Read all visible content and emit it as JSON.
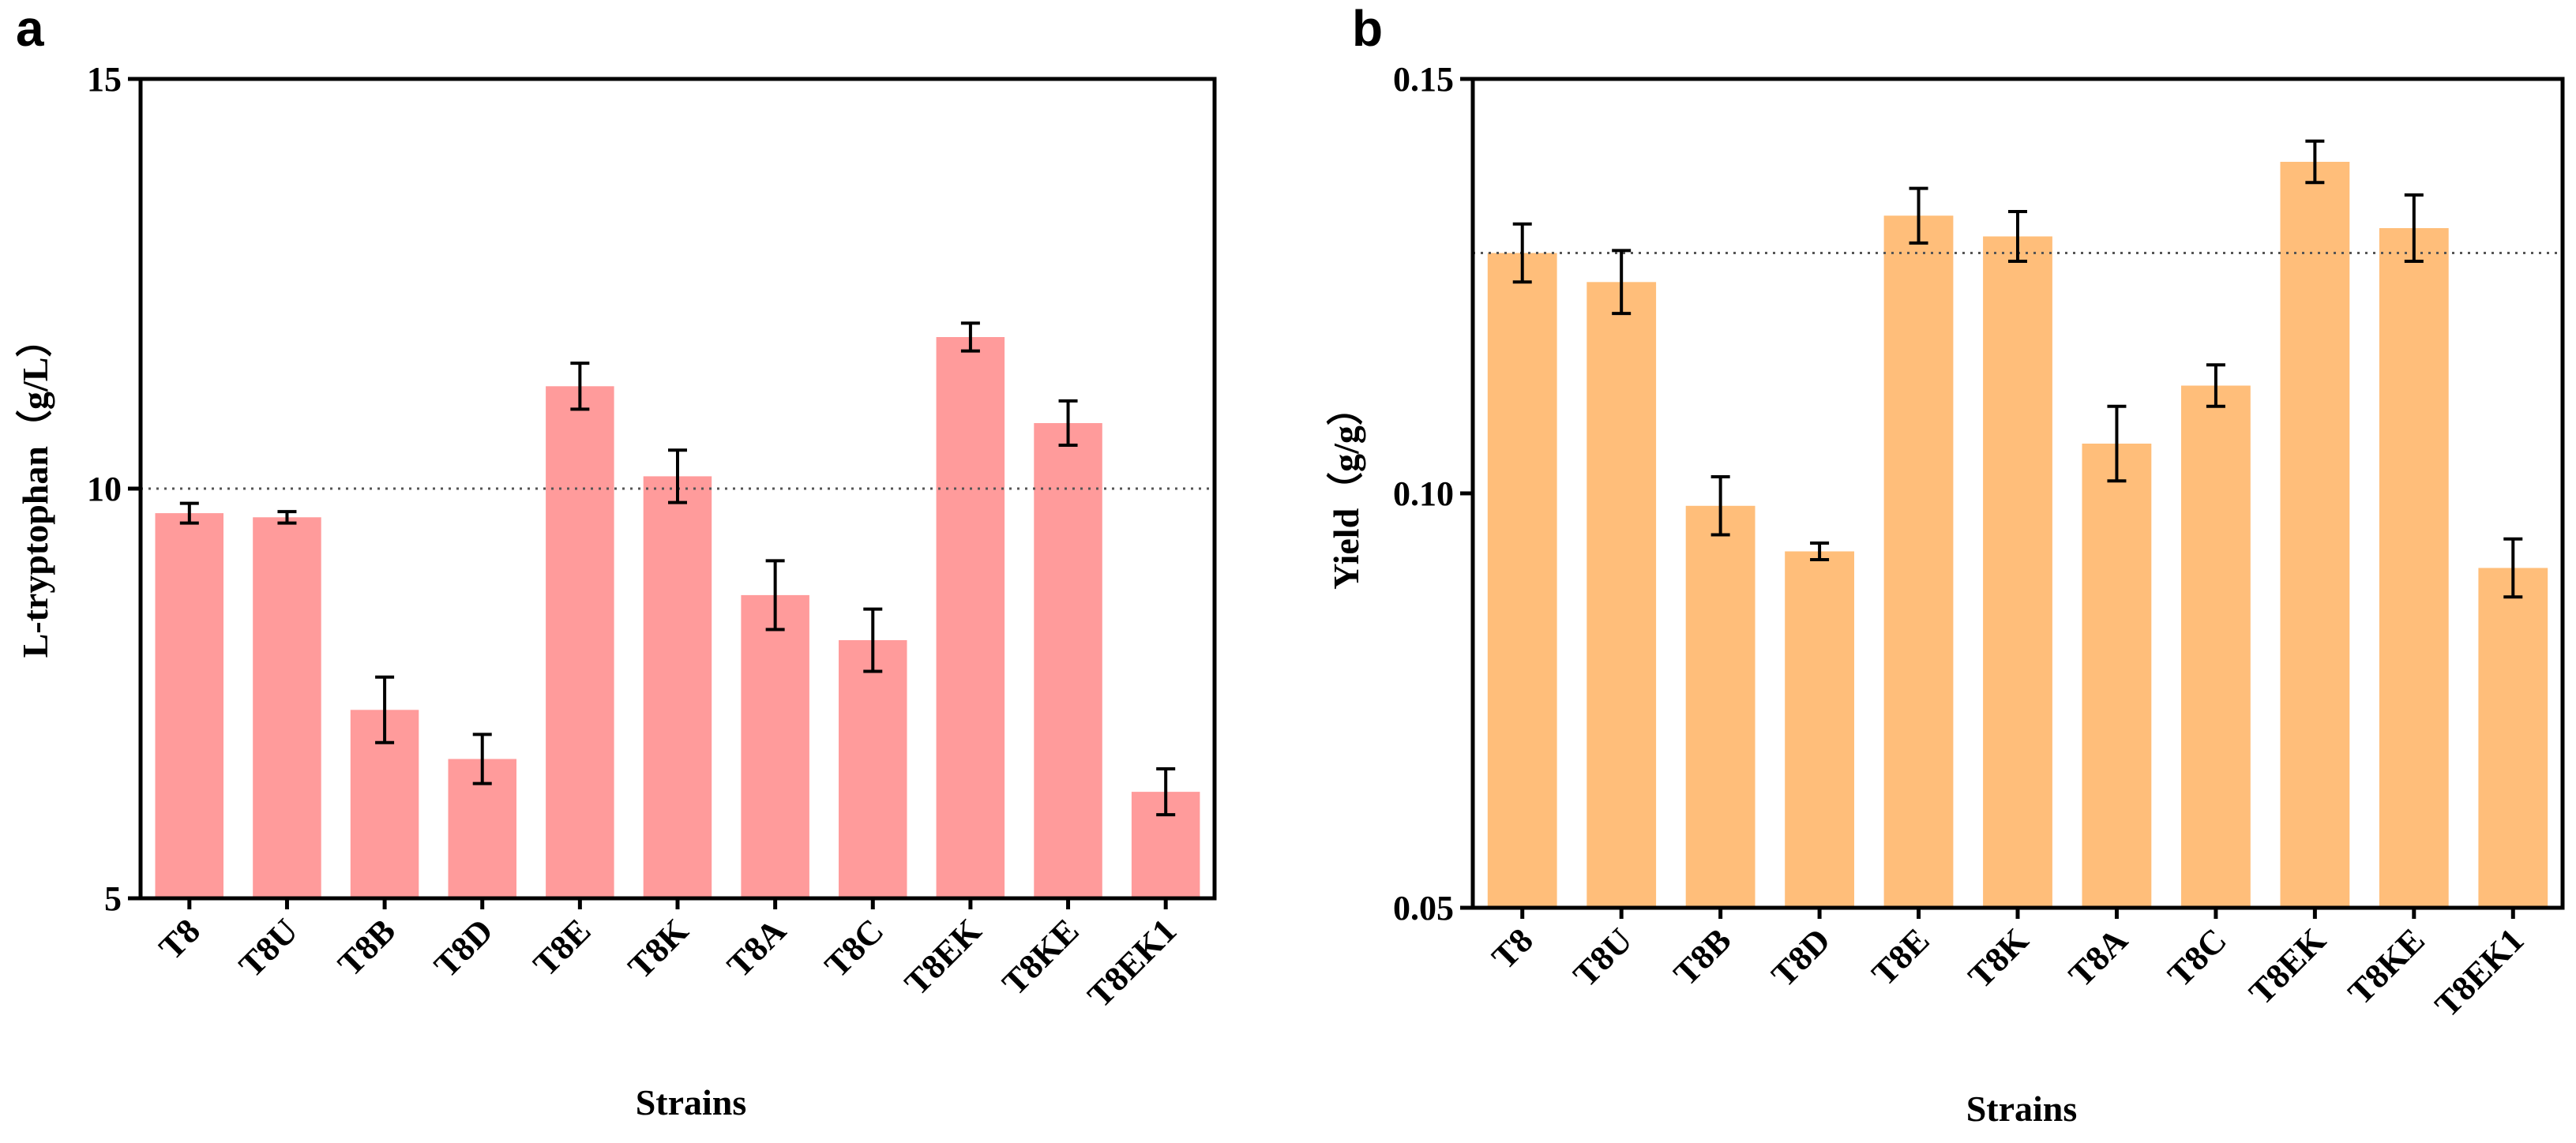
{
  "colors": {
    "panel_a_bar": "#ff9b9b",
    "panel_b_bar": "#ffbe7a",
    "axis": "#000000",
    "reference_line": "#555555"
  },
  "chart_data": [
    {
      "type": "bar",
      "panel_label": "a",
      "title": "",
      "xlabel": "Strains",
      "ylabel": "L-tryptophan（g/L）",
      "ylim": [
        5,
        15
      ],
      "yticks": [
        5,
        10,
        15
      ],
      "ytick_labels": [
        "5",
        "10",
        "15"
      ],
      "reference_line": 10,
      "categories": [
        "T8",
        "T8U",
        "T8B",
        "T8D",
        "T8E",
        "T8K",
        "T8A",
        "T8C",
        "T8EK",
        "T8KE",
        "T8EK1"
      ],
      "values": [
        9.7,
        9.65,
        7.3,
        6.7,
        11.25,
        10.15,
        8.7,
        8.15,
        11.85,
        10.8,
        6.3
      ],
      "errors": [
        0.12,
        0.07,
        0.4,
        0.3,
        0.28,
        0.32,
        0.42,
        0.38,
        0.17,
        0.27,
        0.28
      ]
    },
    {
      "type": "bar",
      "panel_label": "b",
      "title": "",
      "xlabel": "Strains",
      "ylabel": "Yield（g/g）",
      "ylim": [
        0.05,
        0.15
      ],
      "yticks": [
        0.05,
        0.1,
        0.15
      ],
      "ytick_labels": [
        "0.05",
        "0.10",
        "0.15"
      ],
      "reference_line": 0.129,
      "categories": [
        "T8",
        "T8U",
        "T8B",
        "T8D",
        "T8E",
        "T8K",
        "T8A",
        "T8C",
        "T8EK",
        "T8KE",
        "T8EK1"
      ],
      "values": [
        0.129,
        0.1255,
        0.0985,
        0.093,
        0.1335,
        0.131,
        0.106,
        0.113,
        0.14,
        0.132,
        0.091
      ],
      "errors": [
        0.0035,
        0.0038,
        0.0035,
        0.001,
        0.0033,
        0.003,
        0.0045,
        0.0025,
        0.0025,
        0.004,
        0.0035
      ]
    }
  ]
}
